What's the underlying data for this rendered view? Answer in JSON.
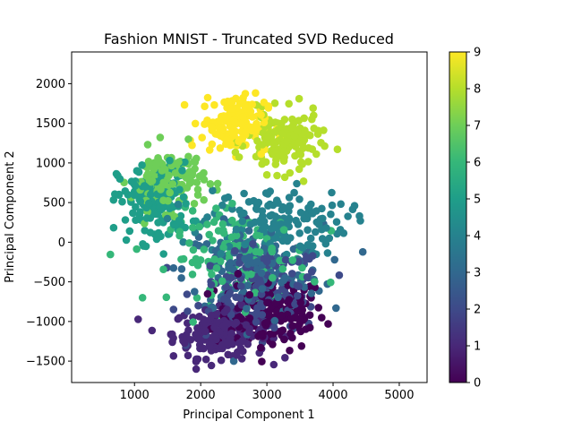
{
  "chart_data": {
    "type": "scatter",
    "title": "Fashion MNIST - Truncated SVD Reduced",
    "xlabel": "Principal Component 1",
    "ylabel": "Principal Component 2",
    "xlim": [
      50,
      5420
    ],
    "ylim": [
      -1770,
      2400
    ],
    "xticks": [
      1000,
      2000,
      3000,
      4000,
      5000
    ],
    "yticks": [
      -1500,
      -1000,
      -500,
      0,
      500,
      1000,
      1500,
      2000
    ],
    "colorbar": {
      "colormap": "viridis",
      "range": [
        0,
        9
      ],
      "ticks": [
        0,
        1,
        2,
        3,
        4,
        5,
        6,
        7,
        8,
        9
      ]
    },
    "grid": false,
    "clusters": [
      {
        "label": 0,
        "center": [
          3050,
          -900
        ],
        "spread": [
          750,
          420
        ],
        "count": 170
      },
      {
        "label": 1,
        "center": [
          2300,
          -1150
        ],
        "spread": [
          650,
          280
        ],
        "count": 190
      },
      {
        "label": 2,
        "center": [
          2900,
          -600
        ],
        "spread": [
          900,
          500
        ],
        "count": 160
      },
      {
        "label": 3,
        "center": [
          2800,
          -350
        ],
        "spread": [
          950,
          520
        ],
        "count": 150
      },
      {
        "label": 4,
        "center": [
          3100,
          250
        ],
        "spread": [
          1000,
          380
        ],
        "count": 150
      },
      {
        "label": 5,
        "center": [
          1300,
          500
        ],
        "spread": [
          500,
          450
        ],
        "count": 150
      },
      {
        "label": 6,
        "center": [
          2600,
          -200
        ],
        "spread": [
          950,
          520
        ],
        "count": 160
      },
      {
        "label": 7,
        "center": [
          1500,
          800
        ],
        "spread": [
          500,
          350
        ],
        "count": 130
      },
      {
        "label": 8,
        "center": [
          3250,
          1250
        ],
        "spread": [
          500,
          350
        ],
        "count": 140
      },
      {
        "label": 9,
        "center": [
          2500,
          1500
        ],
        "spread": [
          450,
          330
        ],
        "count": 150
      }
    ]
  }
}
